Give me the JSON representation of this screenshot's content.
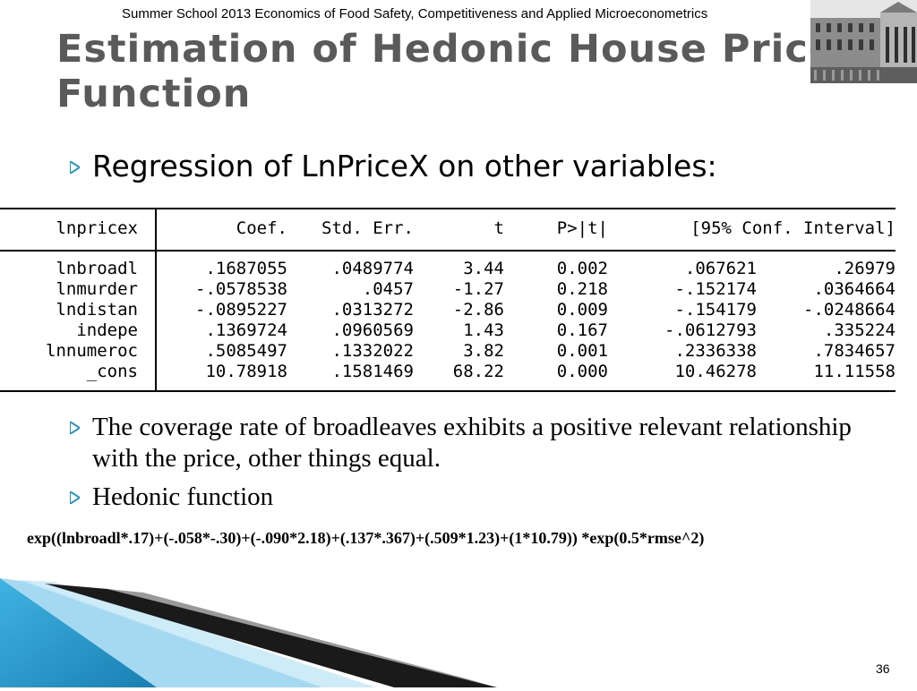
{
  "header": {
    "note": "Summer School 2013 Economics of Food Safety, Competitiveness and Applied Microeconometrics"
  },
  "slide": {
    "title_line1": "Estimation of Hedonic House Price",
    "title_line2": "Function",
    "bullet1": "Regression of LnPriceX on other variables:",
    "bullet2": "The coverage rate of broadleaves exhibits a positive relevant relationship with the price, other things equal.",
    "bullet3": "Hedonic function",
    "formula": "exp((lnbroadl*.17)+(-.058*-.30)+(-.090*2.18)+(.137*.367)+(.509*1.23)+(1*10.79)) *exp(0.5*rmse^2)",
    "page_number": "36"
  },
  "regression_table": {
    "headers": [
      "lnpricex",
      "Coef.",
      "Std. Err.",
      "t",
      "P>|t|",
      "[95% Conf. Interval]"
    ],
    "rows": [
      {
        "var": "lnbroadl",
        "coef": ".1687055",
        "se": ".0489774",
        "t": "3.44",
        "p": "0.002",
        "lo": ".067621",
        "hi": ".26979"
      },
      {
        "var": "lnmurder",
        "coef": "-.0578538",
        "se": ".0457",
        "t": "-1.27",
        "p": "0.218",
        "lo": "-.152174",
        "hi": ".0364664"
      },
      {
        "var": "lndistan",
        "coef": "-.0895227",
        "se": ".0313272",
        "t": "-2.86",
        "p": "0.009",
        "lo": "-.154179",
        "hi": "-.0248664"
      },
      {
        "var": "indepe",
        "coef": ".1369724",
        "se": ".0960569",
        "t": "1.43",
        "p": "0.167",
        "lo": "-.0612793",
        "hi": ".335224"
      },
      {
        "var": "lnnumeroc",
        "coef": ".5085497",
        "se": ".1332022",
        "t": "3.82",
        "p": "0.001",
        "lo": ".2336338",
        "hi": ".7834657"
      },
      {
        "var": "_cons",
        "coef": "10.78918",
        "se": ".1581469",
        "t": "68.22",
        "p": "0.000",
        "lo": "10.46278",
        "hi": "11.11558"
      }
    ]
  },
  "colors": {
    "title": "#5a5a5a",
    "bullet": "#1c96c8",
    "accent_blue": "#2a9fd0"
  },
  "icons": {
    "bullet": "triangle-right-icon",
    "photo": "building-photo"
  }
}
